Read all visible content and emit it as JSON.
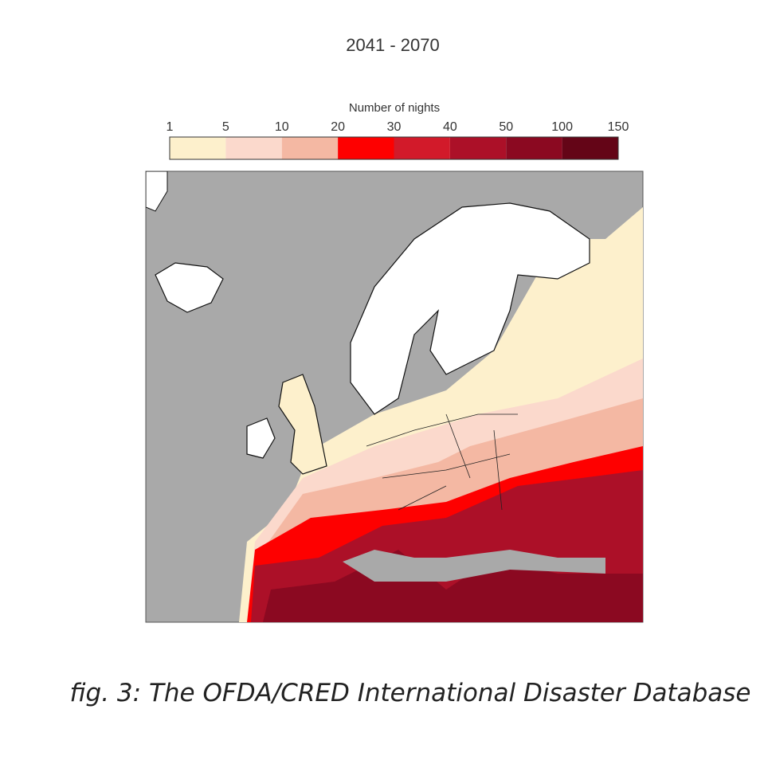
{
  "title": "2041 - 2070",
  "legend": {
    "label": "Number of nights",
    "boundaries": [
      1,
      5,
      10,
      20,
      30,
      40,
      50,
      100,
      150
    ],
    "colors": [
      "#fdf0cc",
      "#fbd9cc",
      "#f4b8a3",
      "#fe0000",
      "#d21a2a",
      "#ac1028",
      "#8b0921",
      "#640517"
    ]
  },
  "caption": "fig. 3: The OFDA/CRED International Disaster Database"
}
